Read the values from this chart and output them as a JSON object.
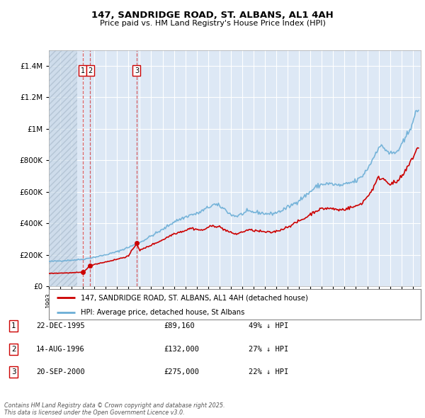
{
  "title_line1": "147, SANDRIDGE ROAD, ST. ALBANS, AL1 4AH",
  "title_line2": "Price paid vs. HM Land Registry's House Price Index (HPI)",
  "background_color": "#ffffff",
  "plot_bg_color": "#dde8f5",
  "grid_color": "#ffffff",
  "legend_label_red": "147, SANDRIDGE ROAD, ST. ALBANS, AL1 4AH (detached house)",
  "legend_label_blue": "HPI: Average price, detached house, St Albans",
  "footer": "Contains HM Land Registry data © Crown copyright and database right 2025.\nThis data is licensed under the Open Government Licence v3.0.",
  "transactions": [
    {
      "num": 1,
      "date": "22-DEC-1995",
      "price": 89160,
      "year": 1995.97
    },
    {
      "num": 2,
      "date": "14-AUG-1996",
      "price": 132000,
      "year": 1996.62
    },
    {
      "num": 3,
      "date": "20-SEP-2000",
      "price": 275000,
      "year": 2000.72
    }
  ],
  "transaction_labels": [
    {
      "num": 1,
      "text": "22-DEC-1995",
      "price": "£89,160",
      "pct": "49% ↓ HPI"
    },
    {
      "num": 2,
      "text": "14-AUG-1996",
      "price": "£132,000",
      "pct": "27% ↓ HPI"
    },
    {
      "num": 3,
      "text": "20-SEP-2000",
      "price": "£275,000",
      "pct": "22% ↓ HPI"
    }
  ],
  "ylim": [
    0,
    1500000
  ],
  "xlim_start": 1993.0,
  "xlim_end": 2025.7,
  "hpi_line_color": "#6baed6",
  "price_line_color": "#cc0000",
  "hatch_end": 1995.5
}
